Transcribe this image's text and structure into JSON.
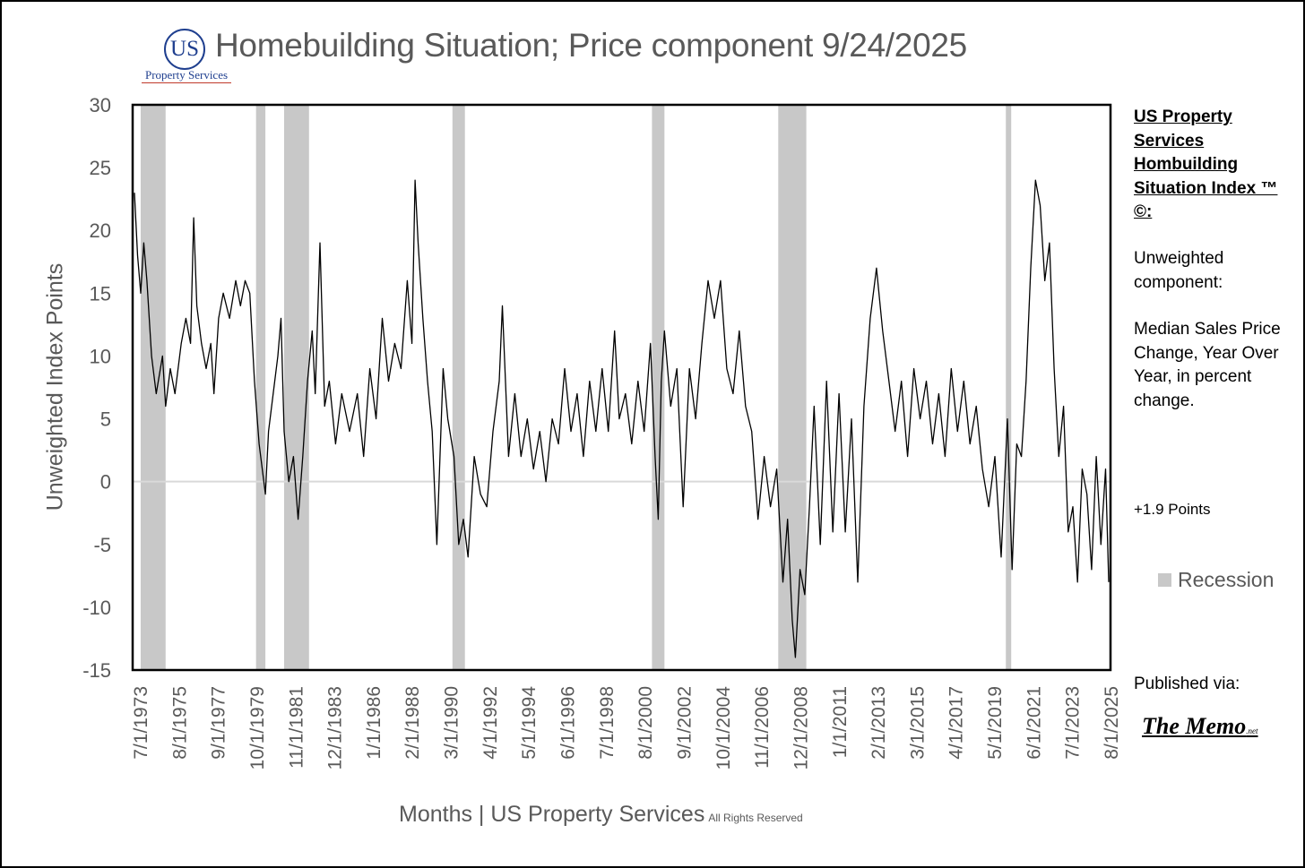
{
  "header": {
    "logo_letters": "US",
    "logo_text": "Property Services",
    "title": "Homebuilding Situation; Price component 9/24/2025"
  },
  "sidebar": {
    "heading": "US Property Services Hombuilding Situation Index ™ ©:",
    "component_label": "Unweighted component:",
    "description": "Median Sales Price Change, Year Over Year, in percent change.",
    "latest_change": "+1.9 Points",
    "legend_label": "Recession",
    "published_label": "Published via:",
    "publisher": "The Memo",
    "publisher_suffix": ".net"
  },
  "footer": {
    "xlabel": "Months |  US Property Services",
    "rights": "All Rights Reserved"
  },
  "colors": {
    "line": "#000000",
    "recession": "#c8c8c8",
    "zero_line": "#d9d9d9",
    "axis_text": "#595959",
    "logo": "#1f3f8f"
  },
  "chart_data": {
    "type": "line",
    "title": "Homebuilding Situation; Price component 9/24/2025",
    "xlabel": "Months |  US Property Services",
    "ylabel": "Unweighted Index Points",
    "ylim": [
      -15,
      30
    ],
    "yticks": [
      30,
      25,
      20,
      15,
      10,
      5,
      0,
      -5,
      -10,
      -15
    ],
    "x_start": "1973-07",
    "x_end": "2025-08",
    "x_tick_labels": [
      "7/1/1973",
      "8/1/1975",
      "9/1/1977",
      "10/1/1979",
      "11/1/1981",
      "12/1/1983",
      "1/1/1986",
      "2/1/1988",
      "3/1/1990",
      "4/1/1992",
      "5/1/1994",
      "6/1/1996",
      "7/1/1998",
      "8/1/2000",
      "9/1/2002",
      "10/1/2004",
      "11/1/2006",
      "12/1/2008",
      "1/1/2011",
      "2/1/2013",
      "3/1/2015",
      "4/1/2017",
      "5/1/2019",
      "6/1/2021",
      "7/1/2023",
      "8/1/2025"
    ],
    "grid": false,
    "legend_position": "right",
    "recessions": [
      {
        "start": "1973-11",
        "end": "1975-03"
      },
      {
        "start": "1980-01",
        "end": "1980-07"
      },
      {
        "start": "1981-07",
        "end": "1982-11"
      },
      {
        "start": "1990-07",
        "end": "1991-03"
      },
      {
        "start": "2001-03",
        "end": "2001-11"
      },
      {
        "start": "2007-12",
        "end": "2009-06"
      },
      {
        "start": "2020-02",
        "end": "2020-04"
      }
    ],
    "series": [
      {
        "points": [
          [
            "1973-07",
            23
          ],
          [
            "1973-09",
            18
          ],
          [
            "1973-11",
            15
          ],
          [
            "1974-01",
            19
          ],
          [
            "1974-03",
            16
          ],
          [
            "1974-06",
            10
          ],
          [
            "1974-09",
            7
          ],
          [
            "1975-01",
            10
          ],
          [
            "1975-03",
            6
          ],
          [
            "1975-06",
            9
          ],
          [
            "1975-09",
            7
          ],
          [
            "1976-01",
            11
          ],
          [
            "1976-04",
            13
          ],
          [
            "1976-07",
            11
          ],
          [
            "1976-09",
            21
          ],
          [
            "1976-11",
            14
          ],
          [
            "1977-02",
            11
          ],
          [
            "1977-05",
            9
          ],
          [
            "1977-08",
            11
          ],
          [
            "1977-10",
            7
          ],
          [
            "1978-01",
            13
          ],
          [
            "1978-04",
            15
          ],
          [
            "1978-08",
            13
          ],
          [
            "1978-12",
            16
          ],
          [
            "1979-03",
            14
          ],
          [
            "1979-06",
            16
          ],
          [
            "1979-09",
            15
          ],
          [
            "1979-12",
            8
          ],
          [
            "1980-03",
            3
          ],
          [
            "1980-05",
            1
          ],
          [
            "1980-07",
            -1
          ],
          [
            "1980-09",
            4
          ],
          [
            "1980-12",
            7
          ],
          [
            "1981-03",
            10
          ],
          [
            "1981-05",
            13
          ],
          [
            "1981-07",
            4
          ],
          [
            "1981-10",
            0
          ],
          [
            "1982-01",
            2
          ],
          [
            "1982-04",
            -3
          ],
          [
            "1982-07",
            2
          ],
          [
            "1982-10",
            8
          ],
          [
            "1983-01",
            12
          ],
          [
            "1983-03",
            7
          ],
          [
            "1983-06",
            19
          ],
          [
            "1983-09",
            6
          ],
          [
            "1983-12",
            8
          ],
          [
            "1984-04",
            3
          ],
          [
            "1984-08",
            7
          ],
          [
            "1985-01",
            4
          ],
          [
            "1985-06",
            7
          ],
          [
            "1985-10",
            2
          ],
          [
            "1986-02",
            9
          ],
          [
            "1986-06",
            5
          ],
          [
            "1986-10",
            13
          ],
          [
            "1987-02",
            8
          ],
          [
            "1987-06",
            11
          ],
          [
            "1987-10",
            9
          ],
          [
            "1988-02",
            16
          ],
          [
            "1988-05",
            11
          ],
          [
            "1988-07",
            24
          ],
          [
            "1988-09",
            19
          ],
          [
            "1988-12",
            13
          ],
          [
            "1989-03",
            8
          ],
          [
            "1989-06",
            4
          ],
          [
            "1989-09",
            -5
          ],
          [
            "1990-01",
            9
          ],
          [
            "1990-04",
            5
          ],
          [
            "1990-08",
            2
          ],
          [
            "1990-11",
            -5
          ],
          [
            "1991-02",
            -3
          ],
          [
            "1991-05",
            -6
          ],
          [
            "1991-09",
            2
          ],
          [
            "1992-01",
            -1
          ],
          [
            "1992-05",
            -2
          ],
          [
            "1992-09",
            4
          ],
          [
            "1993-01",
            8
          ],
          [
            "1993-03",
            14
          ],
          [
            "1993-07",
            2
          ],
          [
            "1993-11",
            7
          ],
          [
            "1994-03",
            2
          ],
          [
            "1994-07",
            5
          ],
          [
            "1994-11",
            1
          ],
          [
            "1995-03",
            4
          ],
          [
            "1995-07",
            0
          ],
          [
            "1995-11",
            5
          ],
          [
            "1996-03",
            3
          ],
          [
            "1996-07",
            9
          ],
          [
            "1996-11",
            4
          ],
          [
            "1997-03",
            7
          ],
          [
            "1997-07",
            2
          ],
          [
            "1997-11",
            8
          ],
          [
            "1998-03",
            4
          ],
          [
            "1998-07",
            9
          ],
          [
            "1998-11",
            4
          ],
          [
            "1999-03",
            12
          ],
          [
            "1999-06",
            5
          ],
          [
            "1999-10",
            7
          ],
          [
            "2000-02",
            3
          ],
          [
            "2000-06",
            8
          ],
          [
            "2000-10",
            4
          ],
          [
            "2001-02",
            11
          ],
          [
            "2001-05",
            2
          ],
          [
            "2001-07",
            -3
          ],
          [
            "2001-09",
            8
          ],
          [
            "2001-11",
            12
          ],
          [
            "2002-03",
            6
          ],
          [
            "2002-07",
            9
          ],
          [
            "2002-11",
            -2
          ],
          [
            "2003-03",
            9
          ],
          [
            "2003-07",
            5
          ],
          [
            "2003-11",
            11
          ],
          [
            "2004-03",
            16
          ],
          [
            "2004-07",
            13
          ],
          [
            "2004-11",
            16
          ],
          [
            "2005-03",
            9
          ],
          [
            "2005-07",
            7
          ],
          [
            "2005-11",
            12
          ],
          [
            "2006-03",
            6
          ],
          [
            "2006-07",
            4
          ],
          [
            "2006-11",
            -3
          ],
          [
            "2007-03",
            2
          ],
          [
            "2007-07",
            -2
          ],
          [
            "2007-11",
            1
          ],
          [
            "2008-03",
            -8
          ],
          [
            "2008-06",
            -3
          ],
          [
            "2008-09",
            -11
          ],
          [
            "2008-11",
            -14
          ],
          [
            "2009-02",
            -7
          ],
          [
            "2009-05",
            -9
          ],
          [
            "2009-08",
            -2
          ],
          [
            "2009-11",
            6
          ],
          [
            "2010-03",
            -5
          ],
          [
            "2010-07",
            8
          ],
          [
            "2010-11",
            -4
          ],
          [
            "2011-03",
            7
          ],
          [
            "2011-07",
            -4
          ],
          [
            "2011-11",
            5
          ],
          [
            "2012-03",
            -8
          ],
          [
            "2012-07",
            6
          ],
          [
            "2012-11",
            13
          ],
          [
            "2013-03",
            17
          ],
          [
            "2013-07",
            12
          ],
          [
            "2013-11",
            8
          ],
          [
            "2014-03",
            4
          ],
          [
            "2014-07",
            8
          ],
          [
            "2014-11",
            2
          ],
          [
            "2015-03",
            9
          ],
          [
            "2015-07",
            5
          ],
          [
            "2015-11",
            8
          ],
          [
            "2016-03",
            3
          ],
          [
            "2016-07",
            7
          ],
          [
            "2016-11",
            2
          ],
          [
            "2017-03",
            9
          ],
          [
            "2017-07",
            4
          ],
          [
            "2017-11",
            8
          ],
          [
            "2018-03",
            3
          ],
          [
            "2018-07",
            6
          ],
          [
            "2018-11",
            1
          ],
          [
            "2019-03",
            -2
          ],
          [
            "2019-07",
            2
          ],
          [
            "2019-11",
            -6
          ],
          [
            "2020-03",
            5
          ],
          [
            "2020-06",
            -7
          ],
          [
            "2020-09",
            3
          ],
          [
            "2020-12",
            2
          ],
          [
            "2021-03",
            8
          ],
          [
            "2021-06",
            17
          ],
          [
            "2021-09",
            24
          ],
          [
            "2021-12",
            22
          ],
          [
            "2022-03",
            16
          ],
          [
            "2022-06",
            19
          ],
          [
            "2022-09",
            9
          ],
          [
            "2022-12",
            2
          ],
          [
            "2023-03",
            6
          ],
          [
            "2023-06",
            -4
          ],
          [
            "2023-09",
            -2
          ],
          [
            "2023-12",
            -8
          ],
          [
            "2024-03",
            1
          ],
          [
            "2024-06",
            -1
          ],
          [
            "2024-09",
            -7
          ],
          [
            "2024-12",
            2
          ],
          [
            "2025-03",
            -5
          ],
          [
            "2025-06",
            1
          ],
          [
            "2025-08",
            -8
          ]
        ]
      }
    ]
  }
}
